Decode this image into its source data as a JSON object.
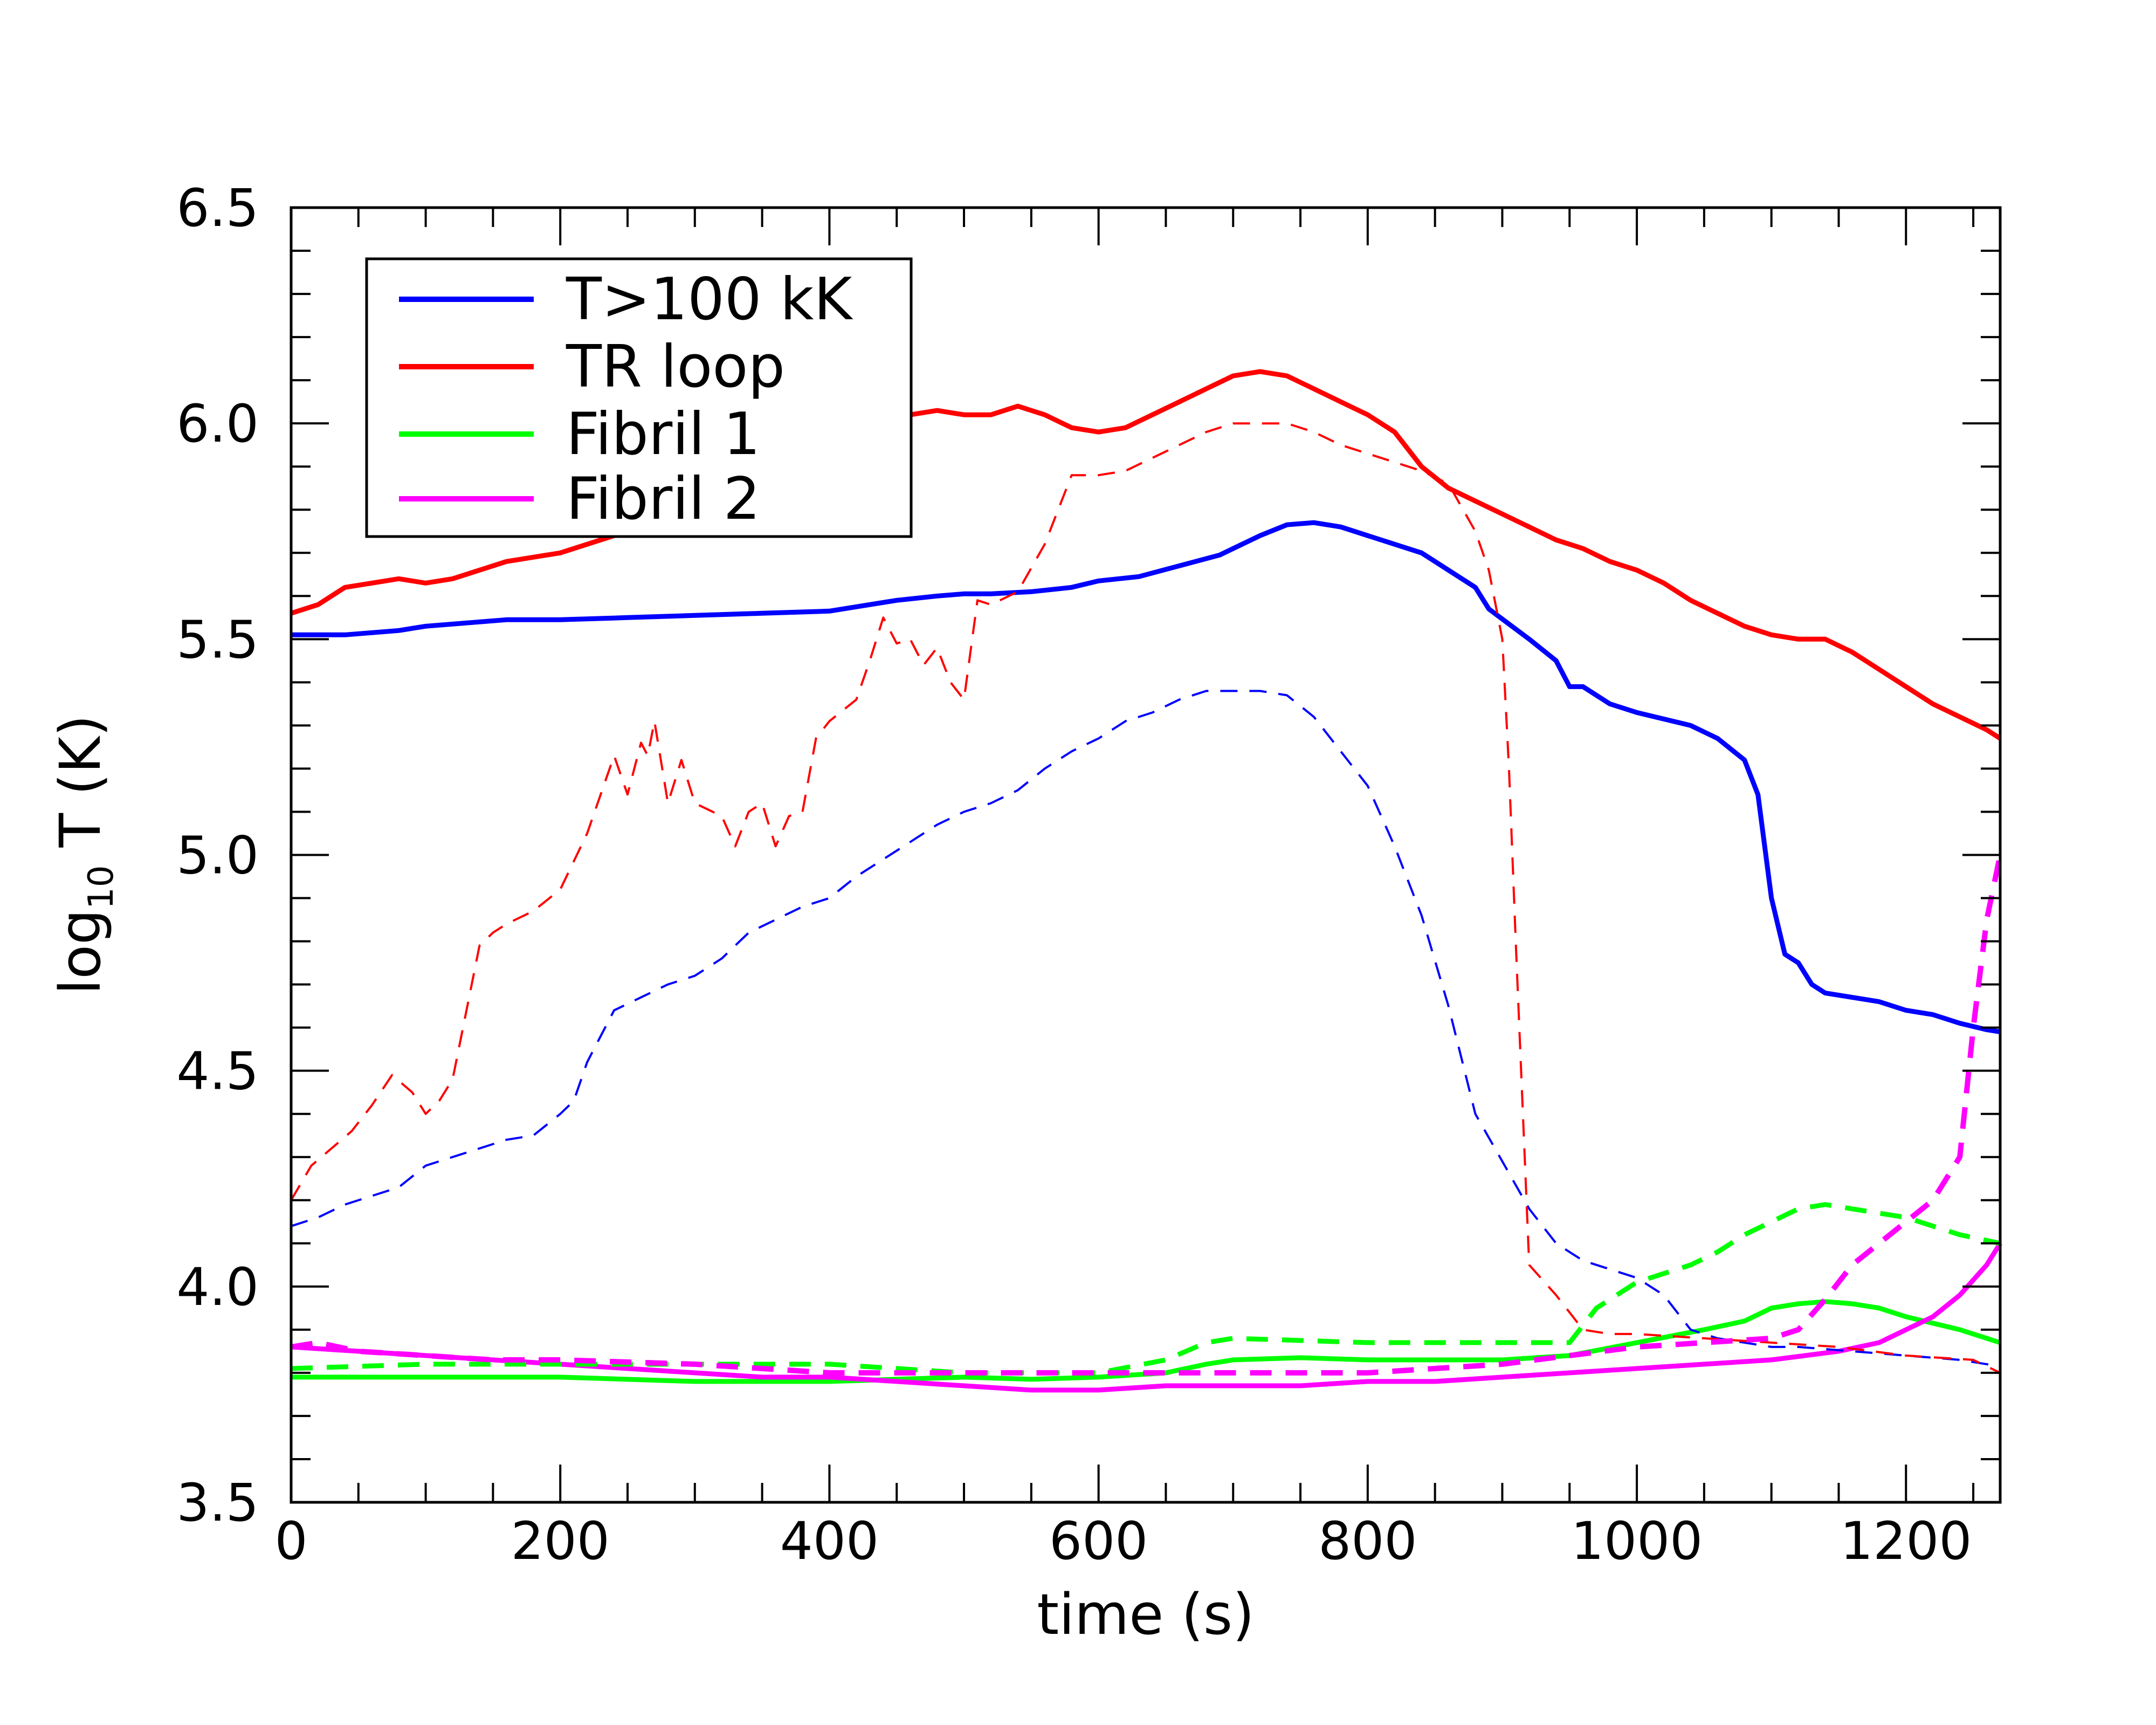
{
  "chart_data": {
    "type": "line",
    "xlabel": "time (s)",
    "ylabel": {
      "base": "log",
      "sub": "10",
      "rest": " T (K)"
    },
    "xlim": [
      0,
      1270
    ],
    "ylim": [
      3.5,
      6.5
    ],
    "x_ticks": [
      "0",
      "200",
      "400",
      "600",
      "800",
      "1000",
      "1200"
    ],
    "x_tick_values": [
      0,
      200,
      400,
      600,
      800,
      1000,
      1200
    ],
    "y_ticks": [
      "3.5",
      "4.0",
      "4.5",
      "5.0",
      "5.5",
      "6.0",
      "6.5"
    ],
    "y_tick_values": [
      3.5,
      4.0,
      4.5,
      5.0,
      5.5,
      6.0,
      6.5
    ],
    "x_minor_step": 50,
    "y_minor_step": 0.1,
    "legend": {
      "position": "top-left",
      "entries": [
        {
          "label": "T>100 kK",
          "color": "#0000ff"
        },
        {
          "label": "TR loop",
          "color": "#ff0000"
        },
        {
          "label": "Fibril 1",
          "color": "#00ff00"
        },
        {
          "label": "Fibril 2",
          "color": "#ff00ff"
        }
      ]
    },
    "series": [
      {
        "name": "T>100 kK",
        "style": "solid",
        "color": "#0000ff",
        "x": [
          0,
          20,
          40,
          60,
          80,
          100,
          120,
          140,
          160,
          200,
          250,
          300,
          350,
          400,
          450,
          480,
          500,
          520,
          550,
          580,
          600,
          630,
          660,
          690,
          720,
          740,
          760,
          780,
          800,
          840,
          880,
          890,
          920,
          940,
          950,
          960,
          980,
          1000,
          1020,
          1040,
          1060,
          1080,
          1090,
          1100,
          1110,
          1120,
          1130,
          1140,
          1160,
          1180,
          1200,
          1220,
          1240,
          1260,
          1270
        ],
        "y": [
          5.51,
          5.51,
          5.51,
          5.515,
          5.52,
          5.53,
          5.535,
          5.54,
          5.545,
          5.545,
          5.55,
          5.555,
          5.56,
          5.565,
          5.59,
          5.6,
          5.605,
          5.605,
          5.61,
          5.62,
          5.635,
          5.645,
          5.67,
          5.695,
          5.74,
          5.765,
          5.77,
          5.76,
          5.74,
          5.7,
          5.62,
          5.57,
          5.5,
          5.45,
          5.39,
          5.39,
          5.35,
          5.33,
          5.315,
          5.3,
          5.27,
          5.22,
          5.14,
          4.9,
          4.77,
          4.75,
          4.7,
          4.68,
          4.67,
          4.66,
          4.64,
          4.63,
          4.61,
          4.595,
          4.59
        ]
      },
      {
        "name": "TR loop",
        "style": "solid",
        "color": "#ff0000",
        "x": [
          0,
          20,
          40,
          60,
          80,
          100,
          120,
          140,
          160,
          180,
          200,
          220,
          240,
          260,
          280,
          300,
          320,
          340,
          360,
          380,
          400,
          420,
          440,
          460,
          480,
          500,
          520,
          540,
          560,
          580,
          600,
          620,
          640,
          660,
          680,
          700,
          720,
          740,
          760,
          780,
          800,
          820,
          840,
          860,
          880,
          900,
          920,
          940,
          960,
          980,
          1000,
          1020,
          1040,
          1060,
          1080,
          1100,
          1120,
          1140,
          1160,
          1180,
          1200,
          1220,
          1240,
          1260,
          1270
        ],
        "y": [
          5.56,
          5.58,
          5.62,
          5.63,
          5.64,
          5.63,
          5.64,
          5.66,
          5.68,
          5.69,
          5.7,
          5.72,
          5.74,
          5.77,
          5.79,
          5.81,
          5.83,
          5.86,
          5.88,
          5.91,
          5.93,
          5.96,
          5.99,
          6.02,
          6.03,
          6.02,
          6.02,
          6.04,
          6.02,
          5.99,
          5.98,
          5.99,
          6.02,
          6.05,
          6.08,
          6.11,
          6.12,
          6.11,
          6.08,
          6.05,
          6.02,
          5.98,
          5.9,
          5.85,
          5.82,
          5.79,
          5.76,
          5.73,
          5.71,
          5.68,
          5.66,
          5.63,
          5.59,
          5.56,
          5.53,
          5.51,
          5.5,
          5.5,
          5.47,
          5.43,
          5.39,
          5.35,
          5.32,
          5.29,
          5.27
        ]
      },
      {
        "name": "Fibril 1",
        "style": "solid",
        "color": "#00ff00",
        "x": [
          0,
          100,
          200,
          300,
          400,
          500,
          550,
          600,
          650,
          680,
          700,
          750,
          800,
          900,
          950,
          1000,
          1050,
          1080,
          1100,
          1120,
          1140,
          1160,
          1180,
          1200,
          1240,
          1270
        ],
        "y": [
          3.79,
          3.79,
          3.79,
          3.78,
          3.78,
          3.79,
          3.785,
          3.79,
          3.8,
          3.82,
          3.83,
          3.835,
          3.83,
          3.83,
          3.84,
          3.87,
          3.9,
          3.92,
          3.95,
          3.96,
          3.965,
          3.96,
          3.95,
          3.93,
          3.9,
          3.87
        ]
      },
      {
        "name": "Fibril 2",
        "style": "solid",
        "color": "#ff00ff",
        "x": [
          0,
          50,
          100,
          150,
          200,
          250,
          300,
          350,
          400,
          450,
          500,
          550,
          600,
          650,
          700,
          750,
          800,
          850,
          900,
          950,
          1000,
          1050,
          1100,
          1150,
          1180,
          1200,
          1220,
          1240,
          1260,
          1270
        ],
        "y": [
          3.86,
          3.85,
          3.84,
          3.83,
          3.82,
          3.81,
          3.8,
          3.79,
          3.79,
          3.78,
          3.77,
          3.76,
          3.76,
          3.77,
          3.77,
          3.77,
          3.78,
          3.78,
          3.79,
          3.8,
          3.81,
          3.82,
          3.83,
          3.85,
          3.87,
          3.9,
          3.93,
          3.98,
          4.05,
          4.1
        ]
      },
      {
        "name": "T>100 kK (dashed)",
        "style": "dashed",
        "color": "#0000ff",
        "x": [
          0,
          20,
          40,
          60,
          80,
          100,
          120,
          140,
          160,
          180,
          200,
          210,
          220,
          230,
          240,
          260,
          280,
          300,
          320,
          340,
          360,
          380,
          400,
          420,
          440,
          460,
          480,
          500,
          520,
          540,
          560,
          580,
          600,
          620,
          640,
          660,
          680,
          700,
          720,
          740,
          760,
          780,
          800,
          820,
          840,
          860,
          880,
          900,
          920,
          940,
          960,
          980,
          1000,
          1020,
          1040,
          1060,
          1080,
          1100,
          1120,
          1140,
          1160,
          1180,
          1200,
          1220,
          1240,
          1260,
          1270
        ],
        "y": [
          4.14,
          4.16,
          4.19,
          4.21,
          4.23,
          4.28,
          4.3,
          4.32,
          4.34,
          4.35,
          4.4,
          4.43,
          4.52,
          4.58,
          4.64,
          4.67,
          4.7,
          4.72,
          4.76,
          4.82,
          4.85,
          4.88,
          4.9,
          4.95,
          4.99,
          5.03,
          5.07,
          5.1,
          5.12,
          5.15,
          5.2,
          5.24,
          5.27,
          5.31,
          5.33,
          5.36,
          5.38,
          5.38,
          5.38,
          5.37,
          5.32,
          5.24,
          5.16,
          5.02,
          4.86,
          4.65,
          4.4,
          4.29,
          4.18,
          4.1,
          4.06,
          4.04,
          4.02,
          3.98,
          3.9,
          3.88,
          3.87,
          3.86,
          3.86,
          3.855,
          3.85,
          3.845,
          3.84,
          3.835,
          3.83,
          3.82,
          3.815
        ]
      },
      {
        "name": "TR loop (dashed)",
        "style": "dashed",
        "color": "#ff0000",
        "x": [
          0,
          15,
          30,
          45,
          60,
          75,
          90,
          100,
          110,
          120,
          140,
          150,
          160,
          180,
          200,
          220,
          240,
          250,
          260,
          265,
          270,
          280,
          290,
          300,
          320,
          330,
          340,
          350,
          360,
          370,
          380,
          390,
          400,
          420,
          430,
          440,
          450,
          460,
          470,
          480,
          490,
          500,
          510,
          520,
          540,
          560,
          580,
          600,
          620,
          640,
          660,
          680,
          700,
          720,
          740,
          760,
          780,
          800,
          820,
          840,
          860,
          880,
          890,
          900,
          905,
          910,
          920,
          940,
          960,
          980,
          1000,
          1050,
          1100,
          1150,
          1200,
          1250,
          1270
        ],
        "y": [
          4.2,
          4.28,
          4.32,
          4.36,
          4.42,
          4.49,
          4.45,
          4.4,
          4.43,
          4.48,
          4.79,
          4.82,
          4.84,
          4.87,
          4.92,
          5.05,
          5.23,
          5.14,
          5.26,
          5.23,
          5.31,
          5.12,
          5.22,
          5.12,
          5.09,
          5.02,
          5.1,
          5.12,
          5.02,
          5.09,
          5.1,
          5.27,
          5.31,
          5.36,
          5.45,
          5.55,
          5.49,
          5.5,
          5.44,
          5.48,
          5.4,
          5.36,
          5.59,
          5.58,
          5.61,
          5.72,
          5.88,
          5.88,
          5.89,
          5.92,
          5.95,
          5.98,
          6.0,
          6.0,
          6.0,
          5.98,
          5.95,
          5.93,
          5.91,
          5.89,
          5.86,
          5.75,
          5.66,
          5.5,
          5.2,
          4.8,
          4.05,
          3.98,
          3.9,
          3.89,
          3.89,
          3.88,
          3.87,
          3.86,
          3.84,
          3.83,
          3.8
        ]
      },
      {
        "name": "Fibril 1 (dashed)",
        "style": "dashed",
        "color": "#00ff00",
        "x": [
          0,
          100,
          200,
          300,
          400,
          500,
          600,
          650,
          680,
          700,
          750,
          800,
          850,
          900,
          950,
          970,
          990,
          1000,
          1020,
          1040,
          1060,
          1080,
          1100,
          1120,
          1140,
          1160,
          1180,
          1200,
          1220,
          1240,
          1270
        ],
        "y": [
          3.81,
          3.82,
          3.82,
          3.82,
          3.82,
          3.8,
          3.8,
          3.83,
          3.87,
          3.88,
          3.875,
          3.87,
          3.87,
          3.87,
          3.87,
          3.95,
          3.99,
          4.01,
          4.03,
          4.05,
          4.08,
          4.12,
          4.15,
          4.18,
          4.19,
          4.18,
          4.17,
          4.16,
          4.14,
          4.12,
          4.1
        ]
      },
      {
        "name": "Fibril 2 (dashed)",
        "style": "dashed",
        "color": "#ff00ff",
        "x": [
          0,
          20,
          50,
          100,
          150,
          200,
          300,
          400,
          500,
          600,
          700,
          800,
          900,
          950,
          1000,
          1050,
          1100,
          1120,
          1140,
          1160,
          1180,
          1200,
          1220,
          1240,
          1250,
          1260,
          1270
        ],
        "y": [
          3.86,
          3.87,
          3.85,
          3.84,
          3.83,
          3.83,
          3.82,
          3.8,
          3.8,
          3.8,
          3.8,
          3.8,
          3.82,
          3.84,
          3.86,
          3.87,
          3.88,
          3.9,
          3.97,
          4.05,
          4.1,
          4.15,
          4.2,
          4.3,
          4.6,
          4.85,
          5.0
        ]
      }
    ]
  }
}
